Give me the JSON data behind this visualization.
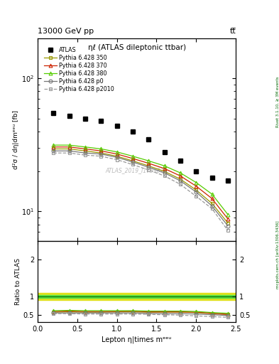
{
  "title_top": "13000 GeV pp",
  "title_top_right": "tt̅",
  "plot_title": "ηℓ (ATLAS dileptonic ttbar)",
  "watermark": "ATLAS_2019_I1759875",
  "right_label_top": "Rivet 3.1.10, ≥ 3M events",
  "right_label_bottom": "mcplots.cern.ch [arXiv:1306.3436]",
  "ylabel_main": "d²σ / dη|dmᵉᵉᵘ [fb]",
  "ylabel_ratio": "Ratio to ATLAS",
  "xlabel": "Lepton η|times mᵉᵉᵘ",
  "xlim": [
    0,
    2.5
  ],
  "ylim_main_log": [
    6,
    200
  ],
  "ylim_ratio": [
    0.3,
    2.5
  ],
  "atlas_x": [
    0.2,
    0.4,
    0.6,
    0.8,
    1.0,
    1.2,
    1.4,
    1.6,
    1.8,
    2.0,
    2.2,
    2.4
  ],
  "atlas_y": [
    55,
    52,
    50,
    48,
    44,
    40,
    35,
    28,
    24,
    20,
    18,
    17
  ],
  "py350_x": [
    0.2,
    0.4,
    0.6,
    0.8,
    1.0,
    1.2,
    1.4,
    1.6,
    1.8,
    2.0,
    2.2,
    2.4
  ],
  "py350_y": [
    29.5,
    29.5,
    28.5,
    27.5,
    26,
    24,
    22,
    20,
    17.5,
    14.5,
    11.5,
    8.2
  ],
  "py370_x": [
    0.2,
    0.4,
    0.6,
    0.8,
    1.0,
    1.2,
    1.4,
    1.6,
    1.8,
    2.0,
    2.2,
    2.4
  ],
  "py370_y": [
    30.5,
    30.5,
    29.5,
    28.5,
    27,
    25,
    23,
    21,
    18.5,
    15.5,
    12.5,
    8.8
  ],
  "py380_x": [
    0.2,
    0.4,
    0.6,
    0.8,
    1.0,
    1.2,
    1.4,
    1.6,
    1.8,
    2.0,
    2.2,
    2.4
  ],
  "py380_y": [
    31.5,
    31.5,
    30.5,
    29.5,
    28,
    26,
    24,
    22,
    19.5,
    16.5,
    13.5,
    9.5
  ],
  "pyp0_x": [
    0.2,
    0.4,
    0.6,
    0.8,
    1.0,
    1.2,
    1.4,
    1.6,
    1.8,
    2.0,
    2.2,
    2.4
  ],
  "pyp0_y": [
    28.5,
    28.5,
    27.5,
    27,
    25.5,
    23.5,
    21.5,
    19.5,
    17,
    14,
    11,
    7.8
  ],
  "pyp2010_x": [
    0.2,
    0.4,
    0.6,
    0.8,
    1.0,
    1.2,
    1.4,
    1.6,
    1.8,
    2.0,
    2.2,
    2.4
  ],
  "pyp2010_y": [
    27.5,
    27.5,
    26.5,
    26,
    24.5,
    22.5,
    20.5,
    18.5,
    16,
    13,
    10.5,
    7.2
  ],
  "ratio_py350": [
    0.57,
    0.58,
    0.57,
    0.57,
    0.58,
    0.58,
    0.57,
    0.57,
    0.57,
    0.56,
    0.53,
    0.51
  ],
  "ratio_py370": [
    0.59,
    0.6,
    0.59,
    0.59,
    0.59,
    0.6,
    0.58,
    0.58,
    0.58,
    0.57,
    0.54,
    0.51
  ],
  "ratio_py380": [
    0.61,
    0.62,
    0.61,
    0.61,
    0.61,
    0.61,
    0.6,
    0.6,
    0.6,
    0.59,
    0.56,
    0.54
  ],
  "ratio_pyp0": [
    0.55,
    0.55,
    0.55,
    0.55,
    0.55,
    0.55,
    0.54,
    0.53,
    0.53,
    0.52,
    0.5,
    0.48
  ],
  "ratio_pyp2010": [
    0.53,
    0.53,
    0.52,
    0.52,
    0.52,
    0.52,
    0.51,
    0.5,
    0.49,
    0.47,
    0.45,
    0.43
  ],
  "band_green_low": 0.965,
  "band_green_high": 1.035,
  "band_yellow_low": 0.9,
  "band_yellow_high": 1.1,
  "color_py350": "#999900",
  "color_py370": "#cc2200",
  "color_py380": "#55cc00",
  "color_pyp0": "#777777",
  "color_pyp2010": "#999999",
  "color_atlas": "#000000",
  "color_band_green": "#44dd44",
  "color_band_yellow": "#dddd00",
  "ratio_yticks": [
    0.5,
    1.0,
    2.0
  ]
}
